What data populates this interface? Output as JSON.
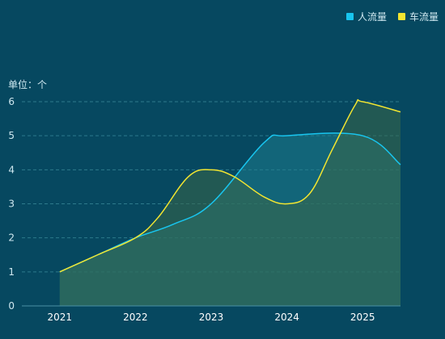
{
  "chart_data": {
    "type": "area",
    "unit_label": "单位：个",
    "categories": [
      "2021",
      "2022",
      "2023",
      "2024",
      "2025"
    ],
    "x_extent": [
      2021,
      2025.5
    ],
    "ylim": [
      0,
      6
    ],
    "yticks": [
      0,
      1,
      2,
      3,
      4,
      5,
      6
    ],
    "grid": true,
    "legend_position": "top-right",
    "series": [
      {
        "name": "人流量",
        "color": "#18c5ef",
        "fill": "#1e7d8e",
        "points": [
          [
            2021,
            1
          ],
          [
            2021.5,
            1.5
          ],
          [
            2022,
            2
          ],
          [
            2022.5,
            2.4
          ],
          [
            2023,
            3
          ],
          [
            2023.7,
            4.8
          ],
          [
            2024,
            5
          ],
          [
            2025,
            5
          ],
          [
            2025.5,
            4.15
          ]
        ]
      },
      {
        "name": "车流量",
        "color": "#f2e530",
        "fill": "#3a6848",
        "points": [
          [
            2021,
            1
          ],
          [
            2021.5,
            1.5
          ],
          [
            2022,
            2
          ],
          [
            2022.3,
            2.6
          ],
          [
            2022.7,
            3.8
          ],
          [
            2023,
            4
          ],
          [
            2023.3,
            3.8
          ],
          [
            2023.7,
            3.2
          ],
          [
            2024,
            3
          ],
          [
            2024.3,
            3.3
          ],
          [
            2024.6,
            4.6
          ],
          [
            2024.9,
            5.9
          ],
          [
            2025,
            6
          ],
          [
            2025.5,
            5.7
          ]
        ]
      }
    ]
  }
}
